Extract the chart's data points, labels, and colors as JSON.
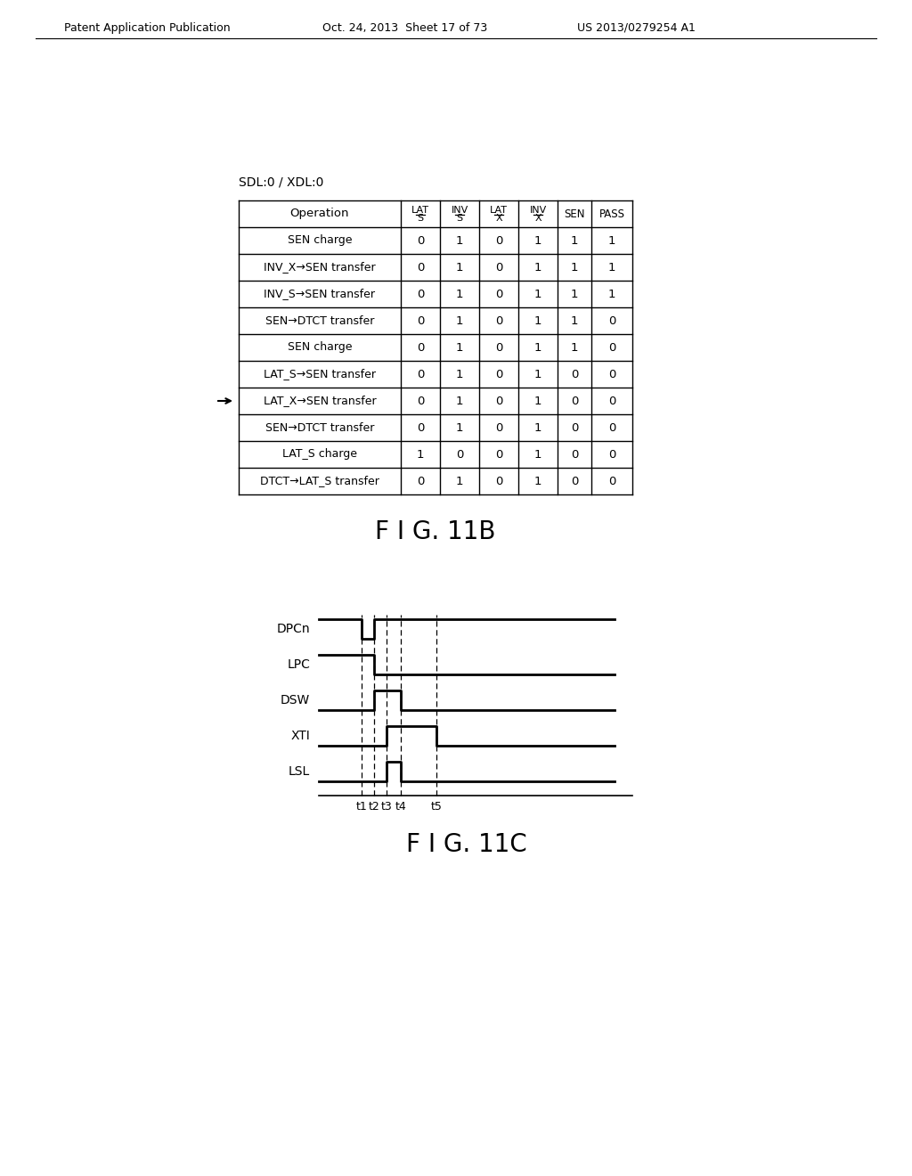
{
  "header_text": "Patent Application Publication",
  "header_date": "Oct. 24, 2013  Sheet 17 of 73",
  "header_patent": "US 2013/0279254 A1",
  "sdl_label": "SDL:0 / XDL:0",
  "table_headers": [
    "Operation",
    "LAT S",
    "INV S",
    "LAT X",
    "INV X",
    "SEN",
    "PASS"
  ],
  "table_rows": [
    [
      "SEN charge",
      0,
      1,
      0,
      1,
      1,
      1
    ],
    [
      "INV_X→SEN transfer",
      0,
      1,
      0,
      1,
      1,
      1
    ],
    [
      "INV_S→SEN transfer",
      0,
      1,
      0,
      1,
      1,
      1
    ],
    [
      "SEN→DTCT transfer",
      0,
      1,
      0,
      1,
      1,
      0
    ],
    [
      "SEN charge",
      0,
      1,
      0,
      1,
      1,
      0
    ],
    [
      "LAT_S→SEN transfer",
      0,
      1,
      0,
      1,
      0,
      0
    ],
    [
      "LAT_X→SEN transfer",
      0,
      1,
      0,
      1,
      0,
      0
    ],
    [
      "SEN→DTCT transfer",
      0,
      1,
      0,
      1,
      0,
      0
    ],
    [
      "LAT_S charge",
      1,
      0,
      0,
      1,
      0,
      0
    ],
    [
      "DTCT→LAT_S transfer",
      0,
      1,
      0,
      1,
      0,
      0
    ]
  ],
  "arrow_row": 6,
  "fig_label_b": "F I G. 11B",
  "fig_label_c": "F I G. 11C",
  "timing_signals": [
    "DPCn",
    "LPC",
    "DSW",
    "XTI",
    "LSL"
  ],
  "timing_labels": [
    "t1",
    "t2",
    "t3",
    "t4",
    "t5"
  ],
  "bg_color": "#ffffff",
  "line_color": "#000000"
}
